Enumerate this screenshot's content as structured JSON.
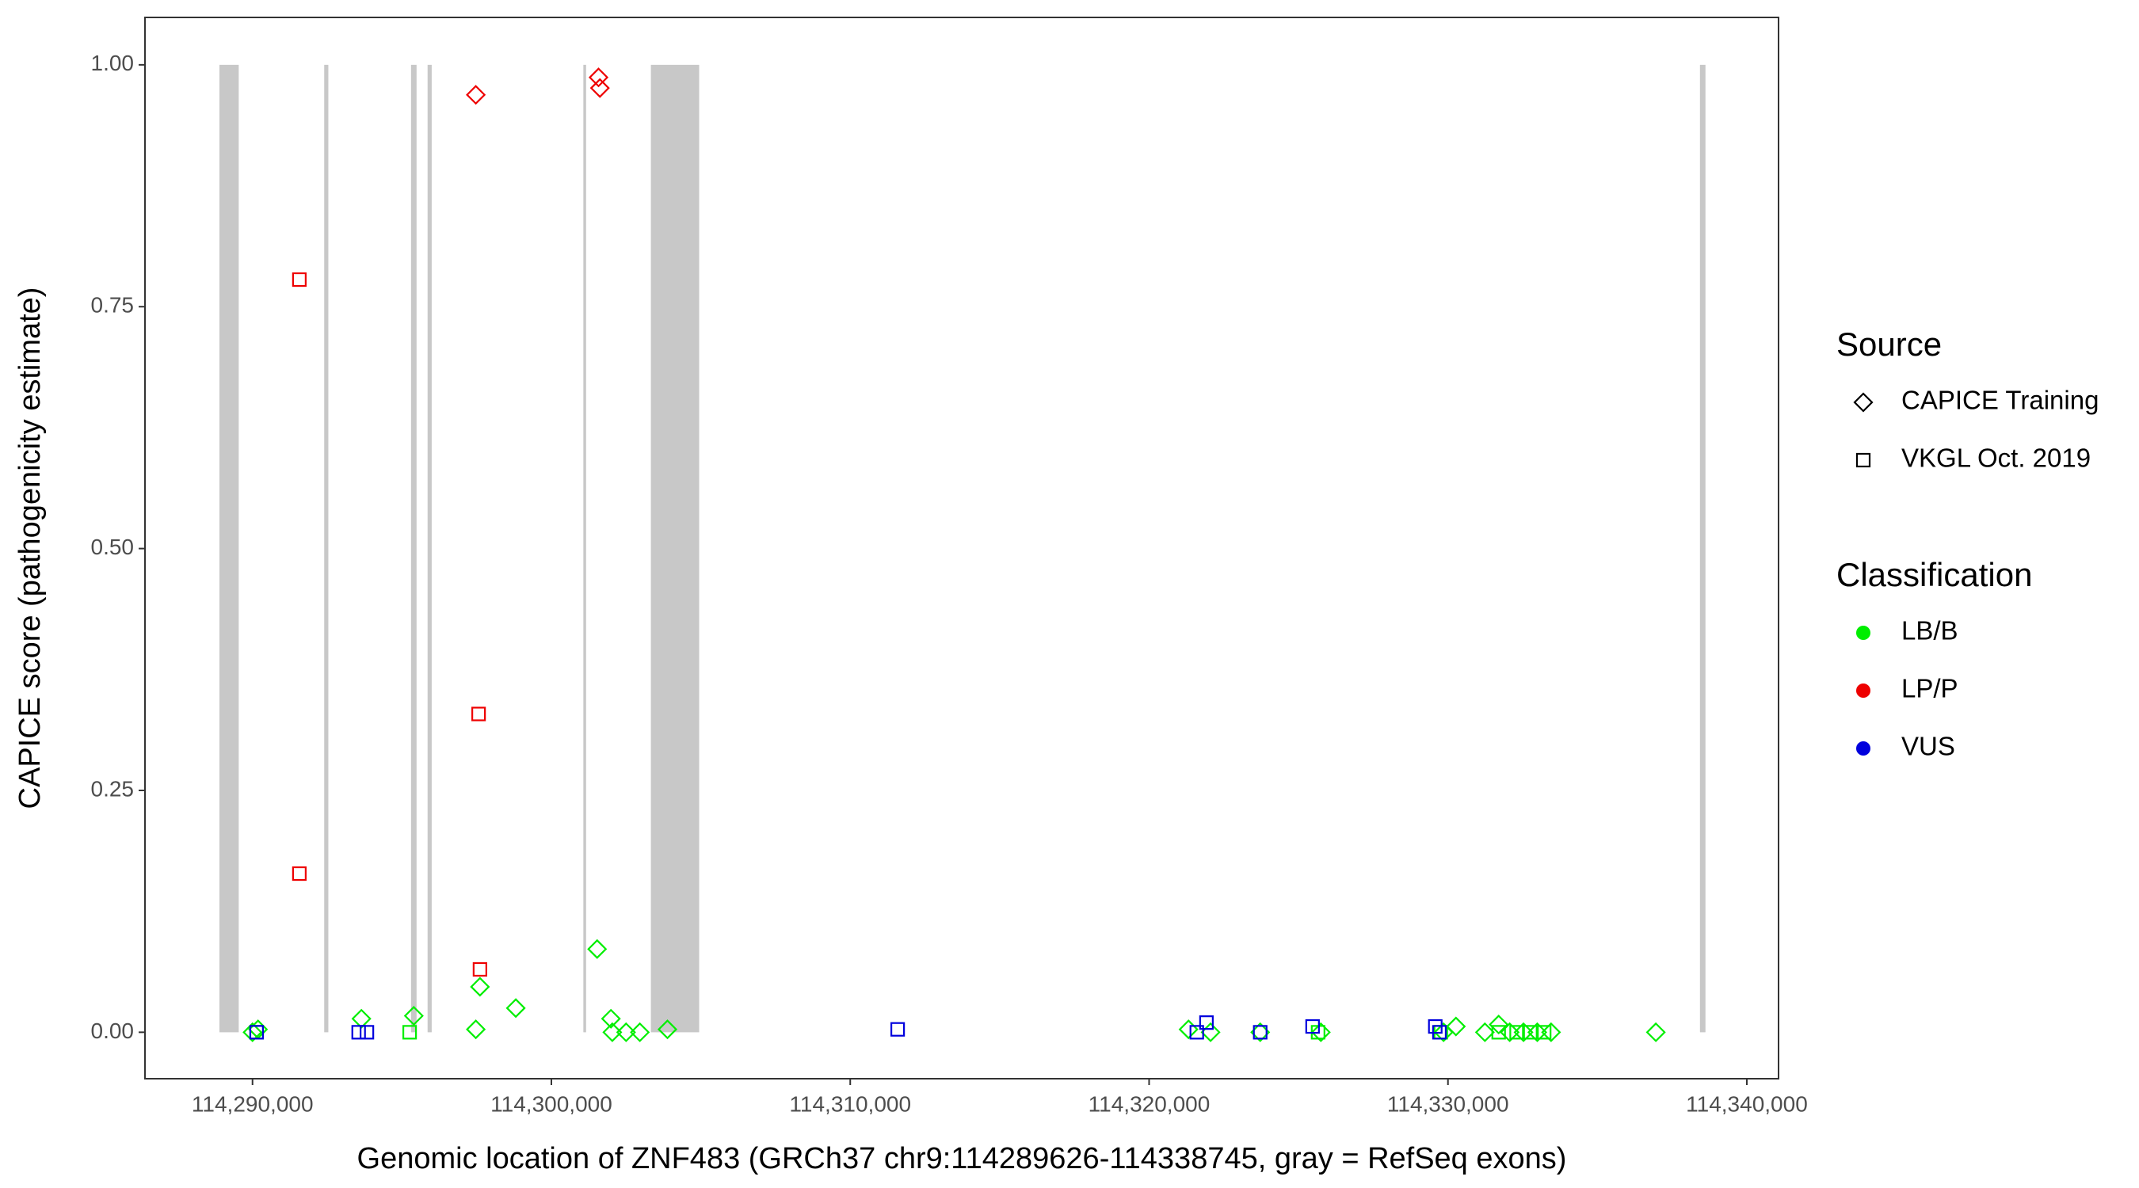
{
  "chart_data": {
    "type": "scatter",
    "x_label": "Genomic location of ZNF483 (GRCh37 chr9:114289626-114338745, gray = RefSeq exons)",
    "y_label": "CAPICE score (pathogenicity estimate)",
    "xlim": [
      114286402,
      114341061
    ],
    "ylim": [
      -0.048,
      1.049
    ],
    "xticks": [
      {
        "value": 114290000,
        "label": "114,290,000"
      },
      {
        "value": 114300000,
        "label": "114,300,000"
      },
      {
        "value": 114310000,
        "label": "114,310,000"
      },
      {
        "value": 114320000,
        "label": "114,320,000"
      },
      {
        "value": 114330000,
        "label": "114,330,000"
      },
      {
        "value": 114340000,
        "label": "114,340,000"
      }
    ],
    "yticks": [
      {
        "value": 0,
        "label": "0.00"
      },
      {
        "value": 0.25,
        "label": "0.25"
      },
      {
        "value": 0.5,
        "label": "0.50"
      },
      {
        "value": 0.75,
        "label": "0.75"
      },
      {
        "value": 1,
        "label": "1.00"
      }
    ],
    "exon_color": "#c8c8c8",
    "exons": [
      [
        114288893,
        114289539
      ],
      [
        114292399,
        114292537
      ],
      [
        114295304,
        114295489
      ],
      [
        114295858,
        114295996
      ],
      [
        114301070,
        114301162
      ],
      [
        114303330,
        114304945
      ],
      [
        114338432,
        114338616
      ]
    ],
    "shape_legend": {
      "title": "Source",
      "items": [
        {
          "name": "CAPICE Training",
          "shape": "diamond"
        },
        {
          "name": "VKGL Oct. 2019",
          "shape": "square"
        }
      ]
    },
    "color_legend": {
      "title": "Classification",
      "items": [
        {
          "name": "LB/B",
          "color": "#00ee00"
        },
        {
          "name": "LP/P",
          "color": "#ee0000"
        },
        {
          "name": "VUS",
          "color": "#0000dd"
        }
      ]
    },
    "points": {
      "x": [
        114291568,
        114291568,
        114297565,
        114297611,
        114297472,
        114301578,
        114301624,
        114290000,
        114290185,
        114293644,
        114295397,
        114297472,
        114297611,
        114298810,
        114301531,
        114301993,
        114302039,
        114302500,
        114302961,
        114303884,
        114321319,
        114322057,
        114323718,
        114325747,
        114329852,
        114330267,
        114331236,
        114331697,
        114332066,
        114332528,
        114332989,
        114333450,
        114336956,
        114290138,
        114295258,
        114325655,
        114329760,
        114331697,
        114332297,
        114332757,
        114333220,
        114290138,
        114293552,
        114293828,
        114311587,
        114321596,
        114321919,
        114323718,
        114325470,
        114329576,
        114329714
      ],
      "y": [
        0.778,
        0.164,
        0.329,
        0.065,
        0.969,
        0.987,
        0.976,
        0,
        0.003,
        0.014,
        0.017,
        0.003,
        0.047,
        0.025,
        0.086,
        0.014,
        0,
        0,
        0,
        0.003,
        0.003,
        0,
        0,
        0,
        0,
        0.006,
        0,
        0.008,
        0,
        0,
        0,
        0,
        0,
        0,
        0,
        0,
        0,
        0,
        0,
        0,
        0,
        0,
        0,
        0,
        0.003,
        0,
        0.01,
        0,
        0.006,
        0.006,
        0
      ],
      "source": [
        "VKGL Oct. 2019",
        "VKGL Oct. 2019",
        "VKGL Oct. 2019",
        "VKGL Oct. 2019",
        "CAPICE Training",
        "CAPICE Training",
        "CAPICE Training",
        "CAPICE Training",
        "CAPICE Training",
        "CAPICE Training",
        "CAPICE Training",
        "CAPICE Training",
        "CAPICE Training",
        "CAPICE Training",
        "CAPICE Training",
        "CAPICE Training",
        "CAPICE Training",
        "CAPICE Training",
        "CAPICE Training",
        "CAPICE Training",
        "CAPICE Training",
        "CAPICE Training",
        "CAPICE Training",
        "CAPICE Training",
        "CAPICE Training",
        "CAPICE Training",
        "CAPICE Training",
        "CAPICE Training",
        "CAPICE Training",
        "CAPICE Training",
        "CAPICE Training",
        "CAPICE Training",
        "CAPICE Training",
        "VKGL Oct. 2019",
        "VKGL Oct. 2019",
        "VKGL Oct. 2019",
        "VKGL Oct. 2019",
        "VKGL Oct. 2019",
        "VKGL Oct. 2019",
        "VKGL Oct. 2019",
        "VKGL Oct. 2019",
        "VKGL Oct. 2019",
        "VKGL Oct. 2019",
        "VKGL Oct. 2019",
        "VKGL Oct. 2019",
        "VKGL Oct. 2019",
        "VKGL Oct. 2019",
        "VKGL Oct. 2019",
        "VKGL Oct. 2019",
        "VKGL Oct. 2019",
        "VKGL Oct. 2019"
      ],
      "class": [
        "LP/P",
        "LP/P",
        "LP/P",
        "LP/P",
        "LP/P",
        "LP/P",
        "LP/P",
        "LB/B",
        "LB/B",
        "LB/B",
        "LB/B",
        "LB/B",
        "LB/B",
        "LB/B",
        "LB/B",
        "LB/B",
        "LB/B",
        "LB/B",
        "LB/B",
        "LB/B",
        "LB/B",
        "LB/B",
        "LB/B",
        "LB/B",
        "LB/B",
        "LB/B",
        "LB/B",
        "LB/B",
        "LB/B",
        "LB/B",
        "LB/B",
        "LB/B",
        "LB/B",
        "LB/B",
        "LB/B",
        "LB/B",
        "LB/B",
        "LB/B",
        "LB/B",
        "LB/B",
        "LB/B",
        "VUS",
        "VUS",
        "VUS",
        "VUS",
        "VUS",
        "VUS",
        "VUS",
        "VUS",
        "VUS",
        "VUS"
      ]
    }
  }
}
